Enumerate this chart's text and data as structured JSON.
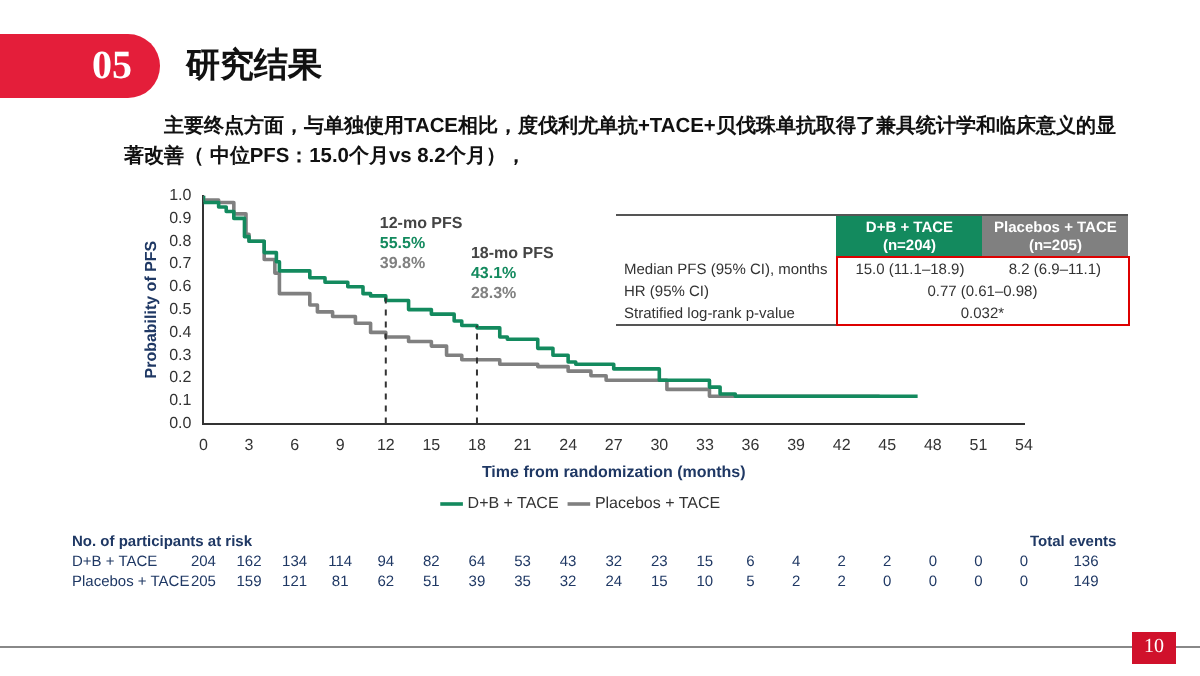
{
  "chart_data": {
    "type": "step",
    "title": "研究结果",
    "subtitle": "主要终点方面，与单独使用TACE相比，度伐利尤单抗+TACE+贝伐珠单抗取得了兼具统计学和临床意义的显著改善（ 中位PFS：15.0个月vs 8.2个月），",
    "xlabel": "Time from randomization (months)",
    "ylabel": "Probability of PFS",
    "series": [
      {
        "name": "D+B + TACE",
        "color": "#138a5e",
        "x": [
          0,
          1,
          1.5,
          2,
          2.7,
          3,
          4,
          4.8,
          5,
          7,
          8,
          9.5,
          10.5,
          11,
          12,
          13.5,
          15,
          16.5,
          17,
          18,
          19.5,
          20,
          22,
          23,
          24,
          24.5,
          27,
          30,
          33.3,
          34,
          35,
          36,
          47
        ],
        "values": [
          1.0,
          0.97,
          0.95,
          0.93,
          0.9,
          0.82,
          0.8,
          0.75,
          0.71,
          0.67,
          0.64,
          0.62,
          0.6,
          0.57,
          0.56,
          0.54,
          0.5,
          0.48,
          0.45,
          0.43,
          0.42,
          0.38,
          0.37,
          0.33,
          0.3,
          0.27,
          0.26,
          0.24,
          0.19,
          0.16,
          0.13,
          0.12,
          0.12
        ]
      },
      {
        "name": "Placebos + TACE",
        "color": "#808080",
        "x": [
          0,
          1,
          2,
          2.8,
          3,
          4,
          4.7,
          5,
          7,
          7.5,
          8.5,
          10,
          11,
          12,
          13.5,
          15,
          16,
          17,
          18,
          19.5,
          22,
          24,
          25.5,
          26.5,
          30.5,
          33.3,
          36.5,
          44.5
        ],
        "values": [
          1.0,
          0.98,
          0.97,
          0.92,
          0.83,
          0.8,
          0.72,
          0.66,
          0.57,
          0.52,
          0.49,
          0.47,
          0.44,
          0.4,
          0.38,
          0.36,
          0.34,
          0.3,
          0.28,
          0.28,
          0.26,
          0.25,
          0.23,
          0.21,
          0.19,
          0.15,
          0.12,
          0.12
        ]
      }
    ],
    "xlim": [
      0,
      54
    ],
    "xticks": [
      0,
      3,
      6,
      9,
      12,
      15,
      18,
      21,
      24,
      27,
      30,
      33,
      36,
      39,
      42,
      45,
      48,
      51,
      54
    ],
    "ylim": [
      0,
      1
    ],
    "yticks": [
      {
        "value": 0,
        "label": "0.0"
      },
      {
        "value": 0.1,
        "label": "0.1"
      },
      {
        "value": 0.2,
        "label": "0.2"
      },
      {
        "value": 0.3,
        "label": "0.3"
      },
      {
        "value": 0.4,
        "label": "0.4"
      },
      {
        "value": 0.5,
        "label": "0.5"
      },
      {
        "value": 0.6,
        "label": "0.6"
      },
      {
        "value": 0.7,
        "label": "0.7"
      },
      {
        "value": 0.8,
        "label": "0.8"
      },
      {
        "value": 0.9,
        "label": "0.9"
      },
      {
        "value": 1,
        "label": "1.0"
      }
    ],
    "grid": false,
    "legend": "bottom",
    "marker": "none",
    "line_style": "solid",
    "ref_lines": [
      {
        "axis": "x",
        "value": 12,
        "color": "#333333",
        "line_style": "dashed"
      },
      {
        "axis": "x",
        "value": 18,
        "color": "#333333",
        "line_style": "dashed"
      }
    ],
    "annotations": [
      "05",
      "10",
      "12-mo PFS",
      "55.5%",
      "39.8%",
      "18-mo PFS",
      "43.1%",
      "28.3%",
      "D+B + TACE (n=204)",
      "Placebos + TACE (n=205)",
      "Median PFS (95% CI), months",
      "15.0 (11.1–18.9)",
      "8.2 (6.9–11.1)",
      "HR (95% CI)",
      "0.77 (0.61–0.98)",
      "Stratified log-rank p-value",
      "0.032*",
      "No. of participants at risk",
      "Total events",
      "D+B + TACE",
      "204 162 134 114 94 82 64 53 43 32 23 15 6 4 2 2 0 0 0",
      "136",
      "Placebos + TACE",
      "205 159 121 81 62 51 39 35 32 24 15 10 5 2 2 0 0 0 0",
      "149"
    ]
  }
}
